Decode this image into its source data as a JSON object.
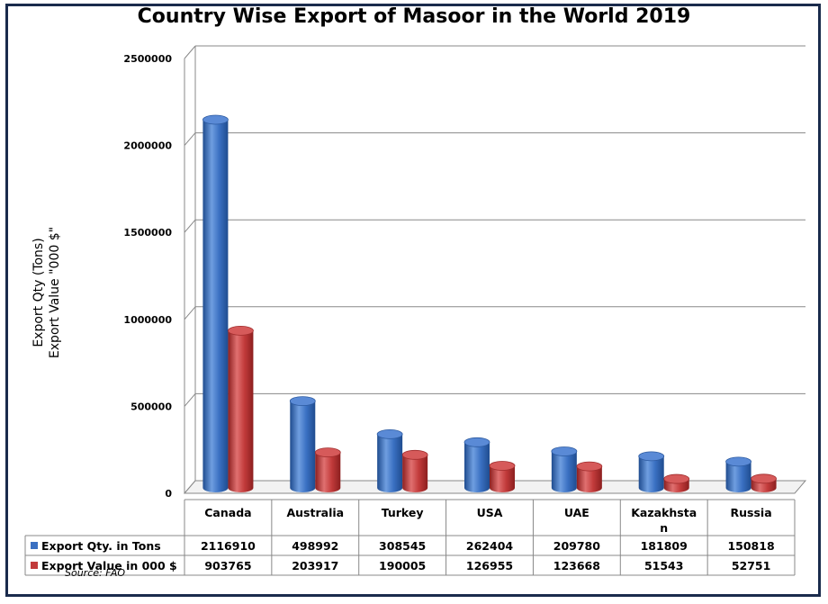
{
  "chart_data": {
    "type": "bar",
    "title": "Country Wise Export of Masoor in the World 2019",
    "ylabel_line1": "Export Qty  (Tons)",
    "ylabel_line2": "Export Value \"000 $\"",
    "ylim": [
      0,
      2500000
    ],
    "yticks": [
      "0",
      "500000",
      "1000000",
      "1500000",
      "2000000",
      "2500000"
    ],
    "grid": true,
    "categories": [
      "Canada",
      "Australia",
      "Turkey",
      "USA",
      "UAE",
      "Kazakhsta n",
      "Russia"
    ],
    "category_lines": [
      [
        "Canada"
      ],
      [
        "Australia"
      ],
      [
        "Turkey"
      ],
      [
        "USA"
      ],
      [
        "UAE"
      ],
      [
        "Kazakhsta",
        "n"
      ],
      [
        "Russia"
      ]
    ],
    "series": [
      {
        "name": "Export Qty. in Tons",
        "color": "#3a70c2",
        "values": [
          2116910,
          498992,
          308545,
          262404,
          209780,
          181809,
          150818
        ]
      },
      {
        "name": "Export Value in 000 $",
        "color": "#c23b3b",
        "values": [
          903765,
          203917,
          190005,
          126955,
          123668,
          51543,
          52751
        ]
      }
    ],
    "source": "Source: FAO"
  }
}
